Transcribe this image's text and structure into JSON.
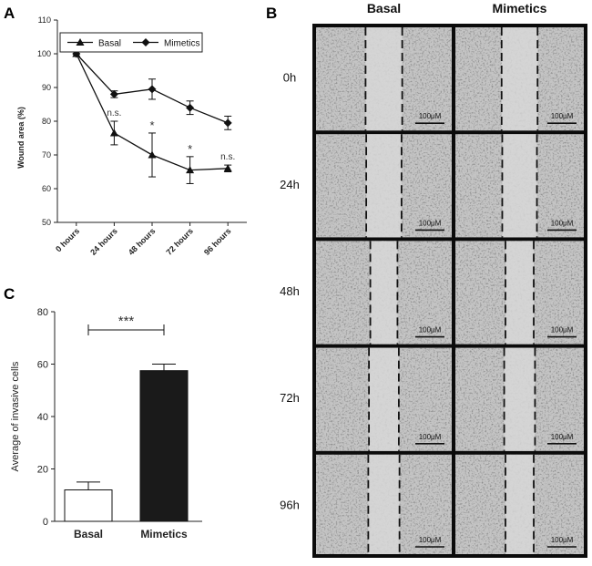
{
  "panels": {
    "a": "A",
    "b": "B",
    "c": "C"
  },
  "chart_data": [
    {
      "type": "line",
      "panel": "A",
      "ylabel": "Wound area (%)",
      "categories": [
        "0 hours",
        "24 hours",
        "48 hours",
        "72 hours",
        "96 hours"
      ],
      "ylim": [
        50,
        110
      ],
      "yticks": [
        50,
        60,
        70,
        80,
        90,
        100,
        110
      ],
      "series": [
        {
          "name": "Basal",
          "marker": "triangle",
          "values": [
            100,
            76.5,
            70,
            65.5,
            66
          ],
          "errors": [
            0,
            3.5,
            6.5,
            4,
            1
          ]
        },
        {
          "name": "Mimetics",
          "marker": "diamond",
          "values": [
            100,
            88,
            89.5,
            84,
            79.5
          ],
          "errors": [
            0,
            1,
            3,
            2,
            2
          ]
        }
      ],
      "annotations": [
        "",
        "n.s.",
        "*",
        "*",
        "n.s."
      ],
      "legend": "top"
    },
    {
      "type": "bar",
      "panel": "C",
      "ylabel": "Average of invasive cells",
      "categories": [
        "Basal",
        "Mimetics"
      ],
      "values": [
        12,
        57.5
      ],
      "errors": [
        3,
        2.5
      ],
      "colors": [
        "#ffffff",
        "#1a1a1a"
      ],
      "ylim": [
        0,
        80
      ],
      "yticks": [
        0,
        20,
        40,
        60,
        80
      ],
      "significance": "***"
    }
  ],
  "micrographs": {
    "columns": [
      "Basal",
      "Mimetics"
    ],
    "rows": [
      "0h",
      "24h",
      "48h",
      "72h",
      "96h"
    ],
    "scale_bar": "100μM",
    "gap_fraction": [
      [
        0.27,
        0.28
      ],
      [
        0.26,
        0.27
      ],
      [
        0.2,
        0.22
      ],
      [
        0.22,
        0.24
      ],
      [
        0.23,
        0.22
      ]
    ]
  },
  "colors": {
    "frame": "#0b0b0b",
    "micrograph": "#c4c4c4",
    "gap": "#d6d6d6"
  }
}
